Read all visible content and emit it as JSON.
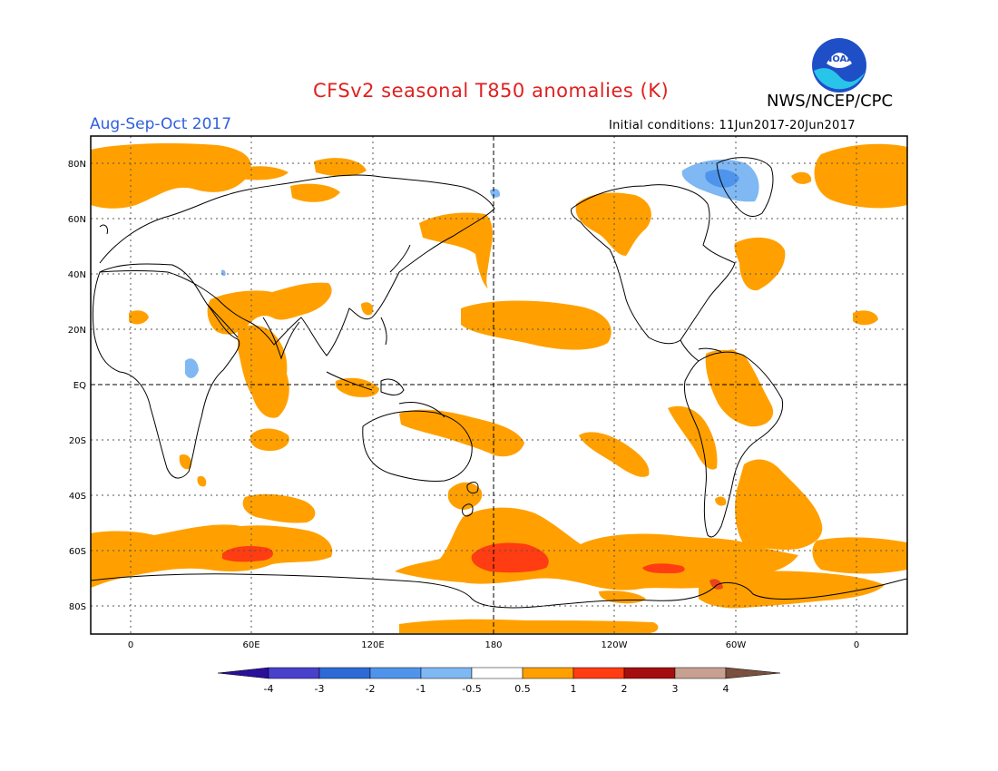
{
  "header": {
    "title": "CFSv2 seasonal T850 anomalies (K)",
    "agency": "NWS/NCEP/CPC",
    "logo_text": "NOAA",
    "season": "Aug-Sep-Oct 2017",
    "initial_conditions": "Initial conditions: 11Jun2017-20Jun2017"
  },
  "axes": {
    "latitudes": [
      "80N",
      "60N",
      "40N",
      "20N",
      "EQ",
      "20S",
      "40S",
      "60S",
      "80S"
    ],
    "longitudes": [
      "0",
      "60E",
      "120E",
      "180",
      "120W",
      "60W",
      "0"
    ],
    "lon_range": [
      -20,
      385
    ],
    "lat_range": [
      -90,
      90
    ],
    "grid": "dotted, every 20 deg lat and 60 deg lon; dashed equator and 180 meridian"
  },
  "colorbar": {
    "labels": [
      "-4",
      "-3",
      "-2",
      "-1",
      "-0.5",
      "0.5",
      "1",
      "2",
      "3",
      "4"
    ],
    "colors": [
      "#2a0f9a",
      "#4940cc",
      "#2d6ad6",
      "#4f94ec",
      "#7fb8f3",
      "#ffffff",
      "#ffa000",
      "#ff3c12",
      "#a50e0e",
      "#c8a090",
      "#7a5040"
    ]
  },
  "palette": {
    "warm1": "#ffa000",
    "warm2": "#ff3c12",
    "warm3": "#e8461a",
    "cool1": "#7fb8f3",
    "cool2": "#4f94ec",
    "coast": "#000000",
    "logo_blue": "#1f4fc7",
    "logo_cyan": "#29c4ea"
  },
  "anomaly_regions": [
    {
      "name": "arctic-west-europe",
      "level": "0.5-1"
    },
    {
      "name": "arctic-east-siberia",
      "level": "0.5-1"
    },
    {
      "name": "greenland-arctic-canada",
      "level": "-1--0.5"
    },
    {
      "name": "north-pacific-alaska",
      "level": "0.5-1"
    },
    {
      "name": "subtropical-north-pacific",
      "level": "0.5-1"
    },
    {
      "name": "south-asia",
      "level": "0.5-1"
    },
    {
      "name": "southern-ocean-south-pacific",
      "level": "1-2"
    },
    {
      "name": "southern-ocean-indian",
      "level": "1-2"
    },
    {
      "name": "amazon-brazil",
      "level": "0.5-1"
    },
    {
      "name": "south-atlantic",
      "level": "0.5-1"
    },
    {
      "name": "east-africa",
      "level": "-1--0.5"
    }
  ]
}
